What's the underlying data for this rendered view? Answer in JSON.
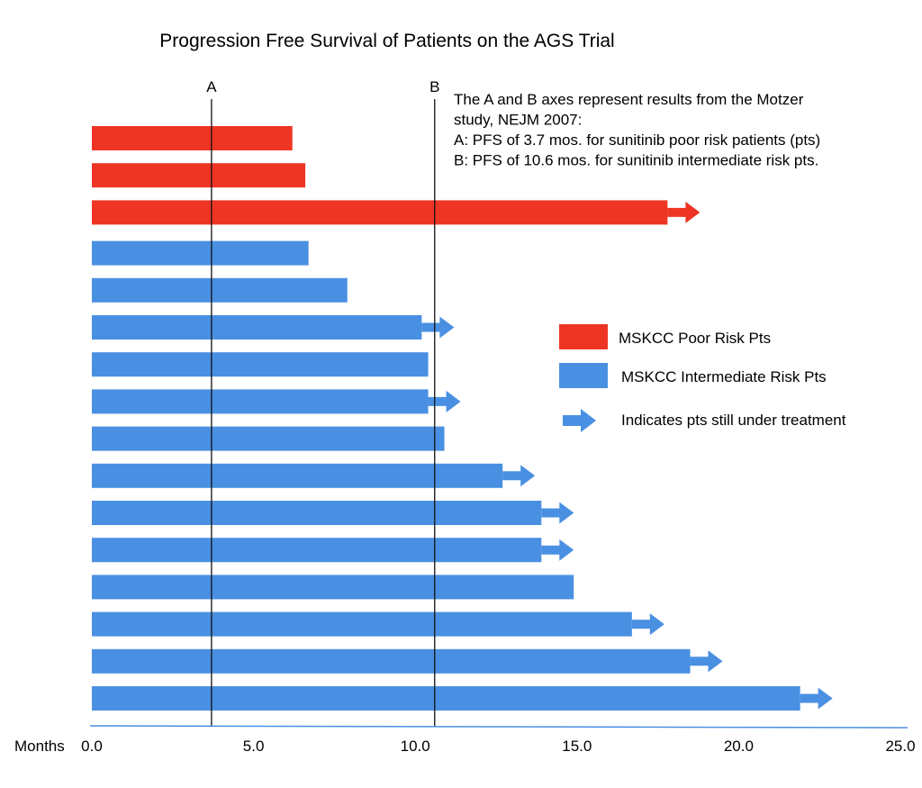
{
  "chart_data": {
    "type": "bar",
    "orientation": "horizontal",
    "title": "Progression Free Survival of Patients on the AGS Trial",
    "xlabel": "Months",
    "xlim": [
      0,
      25
    ],
    "x_ticks": [
      "0.0",
      "5.0",
      "10.0",
      "15.0",
      "20.0",
      "25.0"
    ],
    "grid": false,
    "legend_position": "right",
    "series": [
      {
        "name": "MSKCC Poor Risk Pts",
        "color": "#ee3524",
        "bars": [
          {
            "value": 6.2,
            "ongoing": false
          },
          {
            "value": 6.6,
            "ongoing": false
          },
          {
            "value": 17.8,
            "ongoing": true
          }
        ]
      },
      {
        "name": "MSKCC Intermediate Risk Pts",
        "color": "#4a90e2",
        "bars": [
          {
            "value": 6.7,
            "ongoing": false
          },
          {
            "value": 7.9,
            "ongoing": false
          },
          {
            "value": 10.2,
            "ongoing": true
          },
          {
            "value": 10.4,
            "ongoing": false
          },
          {
            "value": 10.4,
            "ongoing": true
          },
          {
            "value": 10.9,
            "ongoing": false
          },
          {
            "value": 12.7,
            "ongoing": true
          },
          {
            "value": 13.9,
            "ongoing": true
          },
          {
            "value": 13.9,
            "ongoing": true
          },
          {
            "value": 14.9,
            "ongoing": false
          },
          {
            "value": 16.7,
            "ongoing": true
          },
          {
            "value": 18.5,
            "ongoing": true
          },
          {
            "value": 21.9,
            "ongoing": true
          }
        ]
      }
    ],
    "ongoing_legend": "Indicates pts still under treatment",
    "reference_lines": [
      {
        "label": "A",
        "value": 3.7
      },
      {
        "label": "B",
        "value": 10.6
      }
    ],
    "annotation": [
      "The A and B axes represent results from the Motzer",
      "study, NEJM 2007:",
      "A: PFS of 3.7 mos. for sunitinib poor risk patients (pts)",
      "B: PFS of 10.6 mos. for sunitinib  intermediate risk pts."
    ]
  }
}
